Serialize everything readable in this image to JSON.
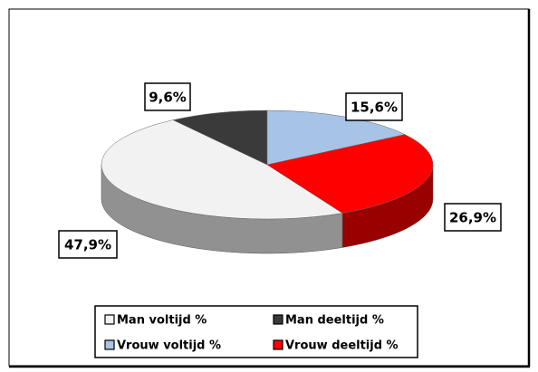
{
  "chart_data": {
    "type": "pie",
    "categories": [
      "Man voltijd %",
      "Man deeltijd %",
      "Vrouw  voltijd %",
      "Vrouw deeltijd %"
    ],
    "values": [
      47.9,
      9.6,
      15.6,
      26.9
    ],
    "value_labels": [
      "47,9%",
      "9,6%",
      "15,6%",
      "26,9%"
    ],
    "colors": [
      "#f2f2f2",
      "#3a3a3a",
      "#a7c3e6",
      "#ff0000"
    ],
    "legend": "bottom"
  }
}
